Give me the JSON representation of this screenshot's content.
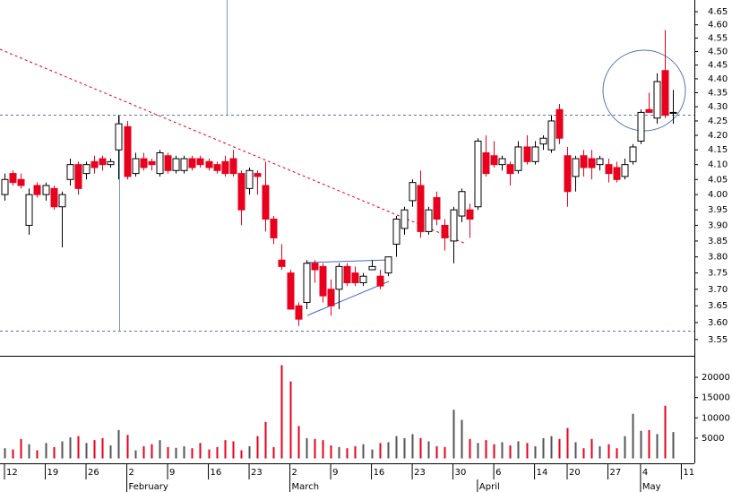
{
  "chart_data": {
    "type": "candlestick",
    "x": [
      0,
      1,
      2,
      3,
      4,
      5,
      6,
      7,
      8,
      9,
      10,
      11,
      12,
      13,
      14,
      15,
      16,
      17,
      18,
      19,
      20,
      21,
      22,
      23,
      24,
      25,
      26,
      27,
      28,
      29,
      30,
      31,
      32,
      33,
      34,
      35,
      36,
      37,
      38,
      39,
      40,
      41,
      42,
      43,
      44,
      45,
      46,
      47,
      48,
      49,
      50,
      51,
      52,
      53,
      54,
      55,
      56,
      57,
      58,
      59,
      60,
      61,
      62,
      63,
      64,
      65,
      66,
      67,
      68,
      69,
      70,
      71,
      72,
      73,
      74,
      75,
      76,
      77,
      78,
      79,
      80,
      81,
      82
    ],
    "open": [
      4.0,
      4.07,
      4.05,
      3.9,
      4.03,
      4.0,
      4.02,
      3.96,
      4.05,
      4.1,
      4.07,
      4.11,
      4.12,
      4.1,
      4.15,
      4.23,
      4.07,
      4.12,
      4.11,
      4.07,
      4.13,
      4.08,
      4.08,
      4.12,
      4.12,
      4.11,
      4.1,
      4.11,
      4.12,
      4.07,
      4.02,
      4.07,
      4.03,
      3.92,
      3.79,
      3.75,
      3.65,
      3.66,
      3.78,
      3.77,
      3.7,
      3.7,
      3.77,
      3.75,
      3.72,
      3.76,
      3.74,
      3.75,
      3.84,
      3.89,
      3.98,
      4.03,
      3.88,
      3.99,
      3.9,
      3.85,
      3.93,
      3.95,
      3.96,
      4.14,
      4.13,
      4.1,
      4.1,
      4.08,
      4.16,
      4.11,
      4.17,
      4.15,
      4.29,
      4.13,
      4.06,
      4.13,
      4.12,
      4.1,
      4.1,
      4.09,
      4.06,
      4.11,
      4.18,
      4.29,
      4.26,
      4.43,
      4.28
    ],
    "high": [
      4.07,
      4.08,
      4.07,
      4.02,
      4.04,
      4.04,
      4.03,
      4.01,
      4.12,
      4.11,
      4.11,
      4.13,
      4.13,
      4.12,
      4.27,
      4.25,
      4.14,
      4.14,
      4.12,
      4.15,
      4.14,
      4.13,
      4.13,
      4.13,
      4.13,
      4.12,
      4.11,
      4.13,
      4.15,
      4.08,
      4.09,
      4.08,
      4.11,
      3.93,
      3.84,
      3.76,
      3.66,
      3.79,
      3.79,
      3.78,
      3.73,
      3.78,
      3.78,
      3.77,
      3.75,
      3.79,
      3.76,
      3.8,
      3.93,
      3.96,
      4.05,
      4.08,
      3.96,
      4.01,
      3.92,
      3.96,
      4.02,
      3.97,
      4.19,
      4.2,
      4.18,
      4.13,
      4.11,
      4.18,
      4.2,
      4.18,
      4.2,
      4.27,
      4.31,
      4.16,
      4.13,
      4.15,
      4.15,
      4.13,
      4.12,
      4.11,
      4.12,
      4.17,
      4.29,
      4.35,
      4.42,
      4.58,
      4.36
    ],
    "low": [
      3.98,
      4.03,
      4.02,
      3.87,
      3.99,
      3.98,
      3.95,
      3.83,
      4.03,
      4.0,
      4.05,
      4.07,
      4.08,
      4.09,
      4.05,
      4.05,
      4.06,
      4.08,
      4.08,
      4.06,
      4.07,
      4.07,
      4.07,
      4.08,
      4.09,
      4.08,
      4.07,
      4.06,
      4.06,
      3.9,
      4.0,
      4.0,
      3.88,
      3.84,
      3.76,
      3.64,
      3.59,
      3.64,
      3.72,
      3.66,
      3.62,
      3.64,
      3.71,
      3.71,
      3.71,
      3.76,
      3.7,
      3.74,
      3.8,
      3.87,
      3.96,
      3.86,
      3.87,
      3.9,
      3.82,
      3.78,
      3.91,
      3.86,
      3.95,
      4.06,
      4.09,
      4.08,
      4.03,
      4.07,
      4.1,
      4.1,
      4.15,
      4.14,
      4.17,
      3.96,
      4.01,
      4.06,
      4.05,
      4.08,
      4.04,
      4.04,
      4.05,
      4.1,
      4.17,
      4.28,
      4.24,
      4.26,
      4.24
    ],
    "close": [
      4.05,
      4.04,
      4.03,
      4.0,
      4.0,
      4.03,
      3.96,
      4.0,
      4.1,
      4.02,
      4.1,
      4.09,
      4.1,
      4.11,
      4.24,
      4.06,
      4.12,
      4.09,
      4.1,
      4.14,
      4.08,
      4.12,
      4.12,
      4.09,
      4.1,
      4.09,
      4.08,
      4.07,
      4.07,
      3.95,
      4.08,
      4.06,
      3.92,
      3.86,
      3.77,
      3.64,
      3.61,
      3.78,
      3.76,
      3.68,
      3.65,
      3.77,
      3.72,
      3.72,
      3.74,
      3.77,
      3.71,
      3.8,
      3.92,
      3.95,
      4.04,
      3.88,
      3.95,
      3.92,
      3.86,
      3.95,
      4.01,
      3.92,
      4.18,
      4.07,
      4.1,
      4.12,
      4.07,
      4.16,
      4.11,
      4.16,
      4.19,
      4.25,
      4.19,
      4.01,
      4.12,
      4.09,
      4.09,
      4.12,
      4.07,
      4.05,
      4.1,
      4.16,
      4.28,
      4.28,
      4.39,
      4.27,
      4.28
    ],
    "volume": [
      2500,
      2200,
      4800,
      3500,
      2000,
      3800,
      2800,
      4200,
      5200,
      5500,
      3800,
      4500,
      5000,
      3200,
      7000,
      5800,
      2000,
      3000,
      3500,
      4500,
      2800,
      2600,
      3000,
      2500,
      3800,
      2200,
      2800,
      4500,
      4200,
      2000,
      3000,
      5500,
      9000,
      2800,
      23000,
      19000,
      8000,
      5000,
      4800,
      4500,
      3200,
      2800,
      2500,
      3000,
      3500,
      2200,
      3800,
      4000,
      5500,
      5000,
      6000,
      5000,
      4200,
      3000,
      2800,
      12000,
      9500,
      4800,
      3800,
      4500,
      3500,
      4000,
      3200,
      4200,
      3800,
      3000,
      5000,
      5500,
      4800,
      7500,
      4000,
      2500,
      4800,
      3000,
      3500,
      2500,
      5500,
      11000,
      6800,
      7000,
      6000,
      13000,
      6500
    ],
    "up_color": "#ffffff",
    "down_color": "#e8001c",
    "volume_color": "#555555",
    "log": true,
    "ylim": [
      3.508,
      4.695
    ],
    "yticks": [
      3.55,
      {
        "value": 3.6,
        "label": "3.60"
      },
      3.65,
      {
        "value": 3.7,
        "label": "3.70"
      },
      3.75,
      {
        "value": 3.8,
        "label": "3.80"
      },
      3.85,
      {
        "value": 3.9,
        "label": "3.90"
      },
      3.95,
      {
        "value": 4.0,
        "label": "4.00"
      },
      4.05,
      {
        "value": 4.1,
        "label": "4.10"
      },
      4.15,
      {
        "value": 4.2,
        "label": "4.20"
      },
      4.25,
      {
        "value": 4.3,
        "label": "4.30"
      },
      4.35,
      {
        "value": 4.4,
        "label": "4.40"
      },
      4.45,
      {
        "value": 4.5,
        "label": "4.50"
      },
      4.55,
      {
        "value": 4.6,
        "label": "4.60"
      },
      4.65
    ],
    "vlim": [
      0,
      25100
    ],
    "vticks": [
      5000,
      10000,
      15000,
      20000
    ],
    "xlim": [
      -0.55,
      84.6
    ],
    "xticks": [
      {
        "value": 0,
        "label": "12"
      },
      {
        "value": 5,
        "label": "19"
      },
      {
        "value": 10,
        "label": "26"
      },
      {
        "value": 15,
        "label": "2"
      },
      {
        "value": 20,
        "label": "9"
      },
      {
        "value": 25,
        "label": "16"
      },
      {
        "value": 30,
        "label": "23"
      },
      {
        "value": 35,
        "label": "2"
      },
      {
        "value": 40,
        "label": "9"
      },
      {
        "value": 45,
        "label": "16"
      },
      {
        "value": 50,
        "label": "23"
      },
      {
        "value": 55,
        "label": "30"
      },
      {
        "value": 60,
        "label": "6"
      },
      {
        "value": 65,
        "label": "14"
      },
      {
        "value": 69,
        "label": "20"
      },
      {
        "value": 74,
        "label": "27"
      },
      {
        "value": 78,
        "label": "4"
      },
      {
        "value": 83,
        "label": "11"
      }
    ],
    "months": [
      {
        "value": 15,
        "label": "February"
      },
      {
        "value": 35,
        "label": "March"
      },
      {
        "value": 58,
        "label": "April"
      },
      {
        "value": 78,
        "label": "May"
      }
    ]
  }
}
